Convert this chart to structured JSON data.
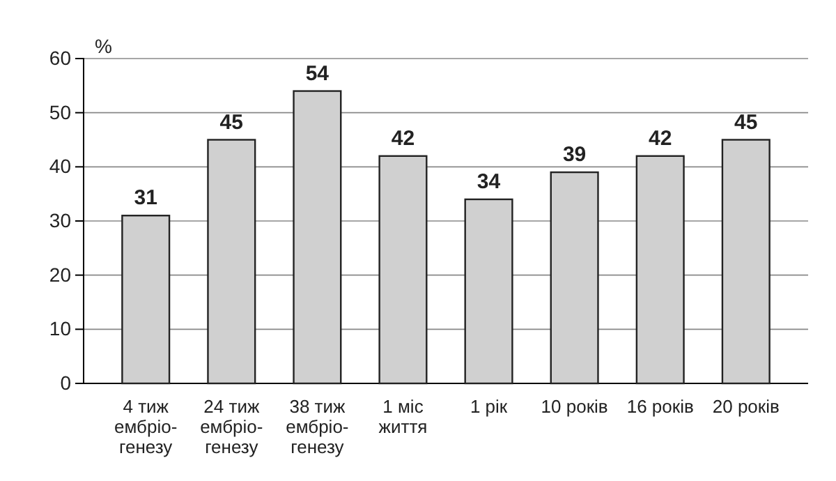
{
  "chart_data": {
    "type": "bar",
    "ylabel": "%",
    "categories": [
      "4 тиж\nембріо-\nгенезу",
      "24 тиж\nембріо-\nгенезу",
      "38 тиж\nембріо-\nгенезу",
      "1 міс\nжиття",
      "1 рік",
      "10 років",
      "16 років",
      "20 років"
    ],
    "values": [
      31,
      45,
      54,
      42,
      34,
      39,
      42,
      45
    ],
    "color": "#d0d0d0",
    "ylim": [
      0,
      60
    ],
    "yticks": [
      0,
      10,
      20,
      30,
      40,
      50,
      60
    ],
    "grid": "y",
    "data_labels": true
  }
}
